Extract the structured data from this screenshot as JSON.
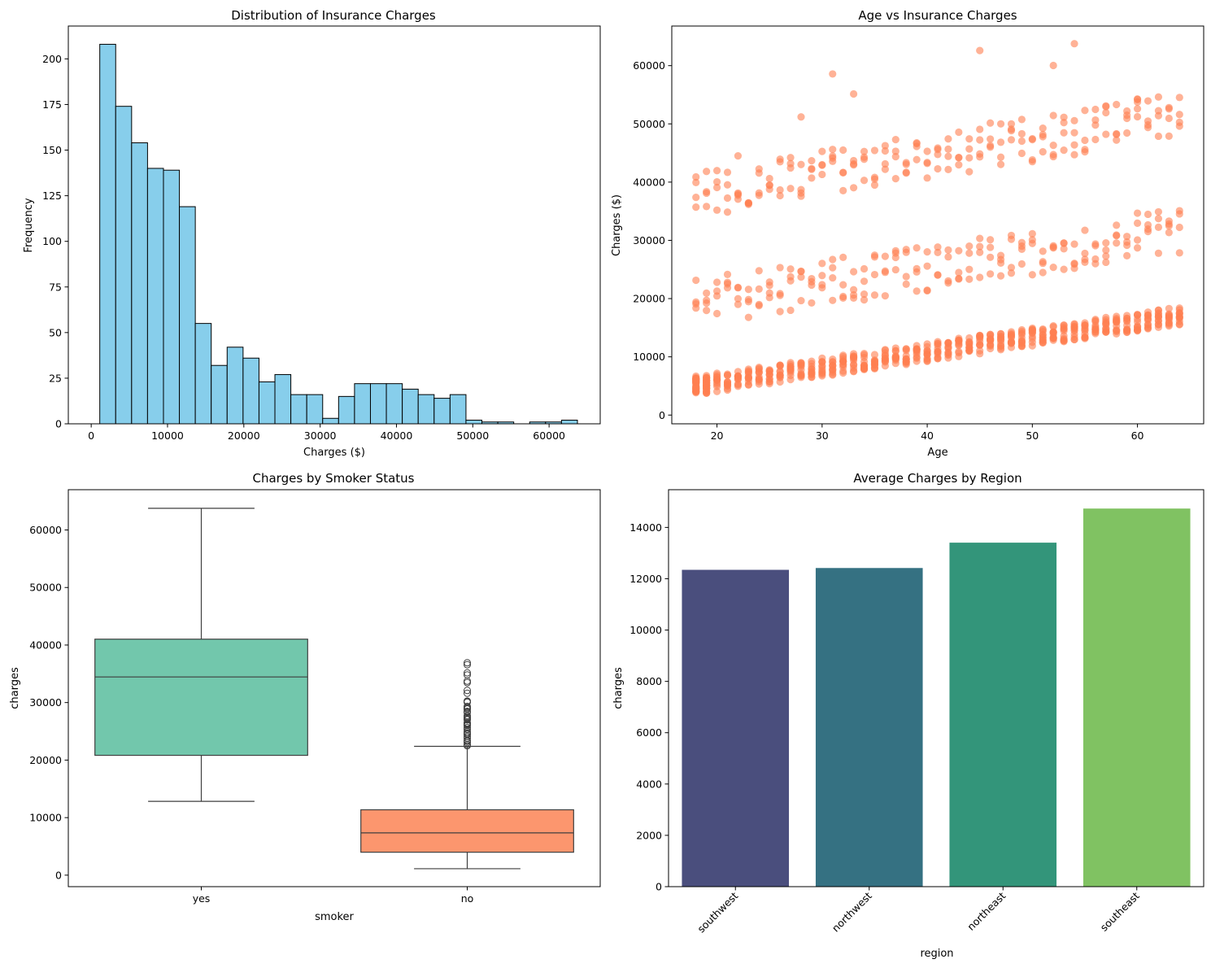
{
  "chart_data": [
    {
      "type": "bar",
      "subtype": "histogram",
      "title": "Distribution of Insurance Charges",
      "xlabel": "Charges ($)",
      "ylabel": "Frequency",
      "bin_start": 1121.87,
      "bin_width": 2086.4,
      "counts": [
        208,
        174,
        154,
        140,
        139,
        119,
        55,
        32,
        42,
        36,
        23,
        27,
        16,
        16,
        3,
        15,
        22,
        22,
        22,
        19,
        16,
        14,
        16,
        2,
        1,
        1,
        0,
        1,
        1,
        2
      ],
      "xlim": [
        -3000,
        66700
      ],
      "ylim": [
        0,
        218
      ],
      "xticks": [
        0,
        10000,
        20000,
        30000,
        40000,
        50000,
        60000
      ],
      "yticks": [
        0,
        25,
        50,
        75,
        100,
        125,
        150,
        175,
        200
      ],
      "grid": false,
      "colors": {
        "fill": "#87ceeb",
        "edge": "#000000"
      }
    },
    {
      "type": "scatter",
      "title": "Age vs Insurance Charges",
      "xlabel": "Age",
      "ylabel": "Charges ($)",
      "xlim": [
        15.7,
        66.3
      ],
      "ylim": [
        -1500,
        66800
      ],
      "xticks": [
        20,
        30,
        40,
        50,
        60
      ],
      "yticks": [
        0,
        10000,
        20000,
        30000,
        40000,
        50000,
        60000
      ],
      "grid": false,
      "colors": {
        "point": "#ff7f50"
      },
      "point_opacity": 0.6,
      "points": []
    },
    {
      "type": "box",
      "title": "Charges by Smoker Status",
      "xlabel": "smoker",
      "ylabel": "charges",
      "categories": [
        "yes",
        "no"
      ],
      "boxes": [
        {
          "category": "yes",
          "whislo": 12829,
          "q1": 20826,
          "median": 34456,
          "q3": 41019,
          "whishi": 63770,
          "fliers": [],
          "color": "#66c2a5"
        },
        {
          "category": "no",
          "whislo": 1121,
          "q1": 3986,
          "median": 7345,
          "q3": 11363,
          "whishi": 22395,
          "fliers": [
            22493,
            22700,
            23045,
            23288,
            23401,
            23807,
            24106,
            24476,
            24513,
            24667,
            24915,
            25333,
            25656,
            25992,
            26140,
            26236,
            26392,
            26467,
            27000,
            27117,
            27346,
            27533,
            27724,
            28287,
            28340,
            28476,
            28868,
            28950,
            29141,
            29330,
            30063,
            30166,
            30260,
            31620,
            32108,
            33471,
            33732,
            34806,
            35160,
            36580,
            36910
          ],
          "color": "#fc8d62"
        }
      ],
      "ylim": [
        -2000,
        67000
      ],
      "yticks": [
        0,
        10000,
        20000,
        30000,
        40000,
        50000,
        60000
      ],
      "grid": false
    },
    {
      "type": "bar",
      "title": "Average Charges by Region",
      "xlabel": "region",
      "ylabel": "charges",
      "categories": [
        "southwest",
        "northwest",
        "northeast",
        "southeast"
      ],
      "values": [
        12347,
        12418,
        13406,
        14735
      ],
      "colors": [
        "#4a4e7d",
        "#357182",
        "#33957a",
        "#80c262"
      ],
      "ylim": [
        0,
        15470
      ],
      "yticks": [
        0,
        2000,
        4000,
        6000,
        8000,
        10000,
        12000,
        14000
      ],
      "tick_rotation": 45,
      "grid": false
    }
  ]
}
